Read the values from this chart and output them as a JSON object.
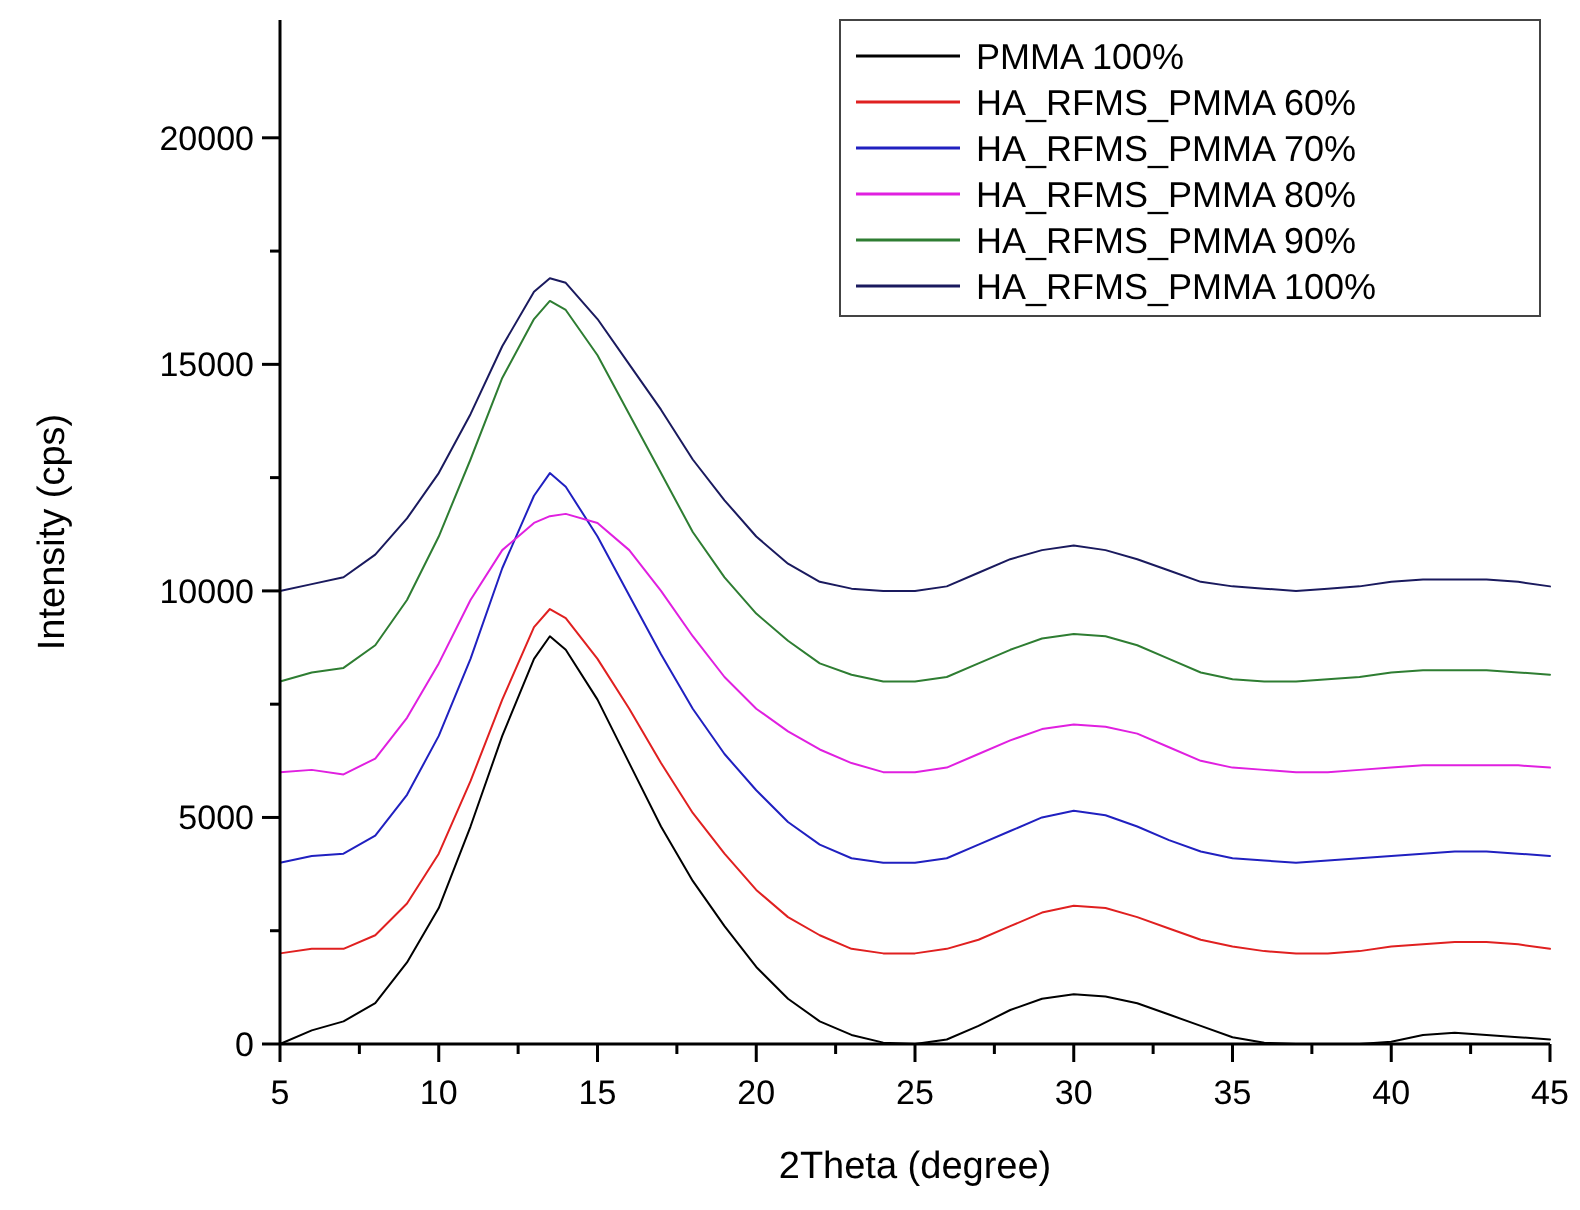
{
  "chart_data": {
    "type": "line",
    "xlabel": "2Theta (degree)",
    "ylabel": "Intensity (cps)",
    "x": [
      5,
      6,
      7,
      8,
      9,
      10,
      11,
      12,
      13,
      13.5,
      14,
      15,
      16,
      17,
      18,
      19,
      20,
      21,
      22,
      23,
      24,
      25,
      26,
      27,
      28,
      29,
      30,
      31,
      32,
      33,
      34,
      35,
      36,
      37,
      38,
      39,
      40,
      41,
      42,
      43,
      44,
      45
    ],
    "xlim": [
      5,
      45
    ],
    "xticks": [
      5,
      10,
      15,
      20,
      25,
      30,
      35,
      40,
      45
    ],
    "ylim": [
      0,
      22600
    ],
    "yticks": [
      0,
      {
        "value": 2500,
        "label": null
      },
      5000,
      {
        "value": 7500,
        "label": null
      },
      10000,
      {
        "value": 12500,
        "label": null
      },
      15000,
      {
        "value": 17500,
        "label": null
      },
      20000
    ],
    "legend": "top right",
    "grid": false,
    "line_style": "solid",
    "marker": "none",
    "series": [
      {
        "name": "PMMA 100%",
        "color": "#000000",
        "values": [
          0,
          300,
          500,
          900,
          1800,
          3000,
          4800,
          6800,
          8500,
          9000,
          8700,
          7600,
          6200,
          4800,
          3600,
          2600,
          1700,
          1000,
          500,
          200,
          30,
          0,
          100,
          400,
          750,
          1000,
          1100,
          1050,
          900,
          650,
          400,
          150,
          30,
          0,
          0,
          0,
          50,
          200,
          250,
          200,
          150,
          100
        ]
      },
      {
        "name": "HA_RFMS_PMMA 60%",
        "color": "#e02020",
        "values": [
          2000,
          2100,
          2100,
          2400,
          3100,
          4200,
          5800,
          7600,
          9200,
          9600,
          9400,
          8500,
          7400,
          6200,
          5100,
          4200,
          3400,
          2800,
          2400,
          2100,
          2000,
          2000,
          2100,
          2300,
          2600,
          2900,
          3050,
          3000,
          2800,
          2550,
          2300,
          2150,
          2050,
          2000,
          2000,
          2050,
          2150,
          2200,
          2250,
          2250,
          2200,
          2100
        ]
      },
      {
        "name": "HA_RFMS_PMMA 70%",
        "color": "#2020c0",
        "values": [
          4000,
          4150,
          4200,
          4600,
          5500,
          6800,
          8500,
          10500,
          12100,
          12600,
          12300,
          11200,
          9900,
          8600,
          7400,
          6400,
          5600,
          4900,
          4400,
          4100,
          4000,
          4000,
          4100,
          4400,
          4700,
          5000,
          5150,
          5050,
          4800,
          4500,
          4250,
          4100,
          4050,
          4000,
          4050,
          4100,
          4150,
          4200,
          4250,
          4250,
          4200,
          4150
        ]
      },
      {
        "name": "HA_RFMS_PMMA 80%",
        "color": "#e020e0",
        "values": [
          6000,
          6050,
          5950,
          6300,
          7200,
          8400,
          9800,
          10900,
          11500,
          11650,
          11700,
          11500,
          10900,
          10000,
          9000,
          8100,
          7400,
          6900,
          6500,
          6200,
          6000,
          6000,
          6100,
          6400,
          6700,
          6950,
          7050,
          7000,
          6850,
          6550,
          6250,
          6100,
          6050,
          6000,
          6000,
          6050,
          6100,
          6150,
          6150,
          6150,
          6150,
          6100
        ]
      },
      {
        "name": "HA_RFMS_PMMA 90%",
        "color": "#2e7d32",
        "values": [
          8000,
          8200,
          8300,
          8800,
          9800,
          11200,
          12900,
          14700,
          16000,
          16400,
          16200,
          15200,
          13900,
          12600,
          11300,
          10300,
          9500,
          8900,
          8400,
          8150,
          8000,
          8000,
          8100,
          8400,
          8700,
          8950,
          9050,
          9000,
          8800,
          8500,
          8200,
          8050,
          8000,
          8000,
          8050,
          8100,
          8200,
          8250,
          8250,
          8250,
          8200,
          8150
        ]
      },
      {
        "name": "HA_RFMS_PMMA 100%",
        "color": "#1a1a5e",
        "values": [
          10000,
          10150,
          10300,
          10800,
          11600,
          12600,
          13900,
          15400,
          16600,
          16900,
          16800,
          16000,
          15000,
          14000,
          12900,
          12000,
          11200,
          10600,
          10200,
          10050,
          10000,
          10000,
          10100,
          10400,
          10700,
          10900,
          11000,
          10900,
          10700,
          10450,
          10200,
          10100,
          10050,
          10000,
          10050,
          10100,
          10200,
          10250,
          10250,
          10250,
          10200,
          10100
        ]
      }
    ]
  }
}
